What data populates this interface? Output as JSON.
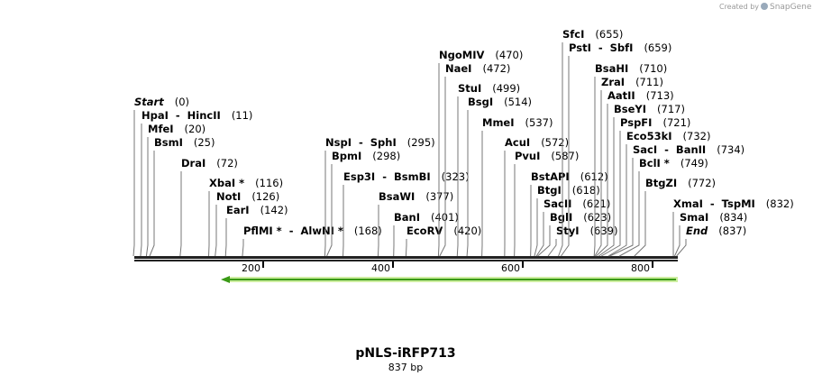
{
  "watermark": "Created by",
  "brand": "SnapGene",
  "map": {
    "title": "pNLS-iRFP713",
    "size": "837 bp",
    "ruler_ticks": [
      200,
      400,
      600,
      800
    ],
    "enzymes": [
      {
        "name": "Start",
        "position": {
          "value": 0,
          "label": "(0)"
        }
      },
      {
        "name": "HpaI  -  HincII",
        "position": {
          "value": 11,
          "label": "(11)"
        }
      },
      {
        "name": "MfeI",
        "position": {
          "value": 20,
          "label": "(20)"
        }
      },
      {
        "name": "BsmI",
        "position": {
          "value": 25,
          "label": "(25)"
        }
      },
      {
        "name": "DraI",
        "position": {
          "value": 72,
          "label": "(72)"
        }
      },
      {
        "name": "XbaI *",
        "position": {
          "value": 116,
          "label": "(116)"
        }
      },
      {
        "name": "NotI",
        "position": {
          "value": 126,
          "label": "(126)"
        }
      },
      {
        "name": "EarI",
        "position": {
          "value": 142,
          "label": "(142)"
        }
      },
      {
        "name": "PflMI *  -  AlwNI *",
        "position": {
          "value": 168,
          "label": "(168)"
        }
      },
      {
        "name": "NspI  -  SphI",
        "position": {
          "value": 295,
          "label": "(295)"
        }
      },
      {
        "name": "BpmI",
        "position": {
          "value": 298,
          "label": "(298)"
        }
      },
      {
        "name": "Esp3I  -  BsmBI",
        "position": {
          "value": 323,
          "label": "(323)"
        }
      },
      {
        "name": "BsaWI",
        "position": {
          "value": 377,
          "label": "(377)"
        }
      },
      {
        "name": "BanI",
        "position": {
          "value": 401,
          "label": "(401)"
        }
      },
      {
        "name": "EcoRV",
        "position": {
          "value": 420,
          "label": "(420)"
        }
      },
      {
        "name": "NgoMIV",
        "position": {
          "value": 470,
          "label": "(470)"
        }
      },
      {
        "name": "NaeI",
        "position": {
          "value": 472,
          "label": "(472)"
        }
      },
      {
        "name": "StuI",
        "position": {
          "value": 499,
          "label": "(499)"
        }
      },
      {
        "name": "BsgI",
        "position": {
          "value": 514,
          "label": "(514)"
        }
      },
      {
        "name": "MmeI",
        "position": {
          "value": 537,
          "label": "(537)"
        }
      },
      {
        "name": "AcuI",
        "position": {
          "value": 572,
          "label": "(572)"
        }
      },
      {
        "name": "PvuI",
        "position": {
          "value": 587,
          "label": "(587)"
        }
      },
      {
        "name": "BstAPI",
        "position": {
          "value": 612,
          "label": "(612)"
        }
      },
      {
        "name": "BtgI",
        "position": {
          "value": 618,
          "label": "(618)"
        }
      },
      {
        "name": "SacII",
        "position": {
          "value": 621,
          "label": "(621)"
        }
      },
      {
        "name": "BglI",
        "position": {
          "value": 623,
          "label": "(623)"
        }
      },
      {
        "name": "StyI",
        "position": {
          "value": 639,
          "label": "(639)"
        }
      },
      {
        "name": "SfcI",
        "position": {
          "value": 655,
          "label": "(655)"
        }
      },
      {
        "name": "PstI  -  SbfI",
        "position": {
          "value": 659,
          "label": "(659)"
        }
      },
      {
        "name": "BsaHI",
        "position": {
          "value": 710,
          "label": "(710)"
        }
      },
      {
        "name": "ZraI",
        "position": {
          "value": 711,
          "label": "(711)"
        }
      },
      {
        "name": "AatII",
        "position": {
          "value": 713,
          "label": "(713)"
        }
      },
      {
        "name": "BseYI",
        "position": {
          "value": 717,
          "label": "(717)"
        }
      },
      {
        "name": "PspFI",
        "position": {
          "value": 721,
          "label": "(721)"
        }
      },
      {
        "name": "Eco53kI",
        "position": {
          "value": 732,
          "label": "(732)"
        }
      },
      {
        "name": "SacI  -  BanII",
        "position": {
          "value": 734,
          "label": "(734)"
        }
      },
      {
        "name": "BclI *",
        "position": {
          "value": 749,
          "label": "(749)"
        }
      },
      {
        "name": "BtgZI",
        "position": {
          "value": 772,
          "label": "(772)"
        }
      },
      {
        "name": "XmaI  -  TspMI",
        "position": {
          "value": 832,
          "label": "(832)"
        }
      },
      {
        "name": "SmaI",
        "position": {
          "value": 834,
          "label": "(834)"
        }
      },
      {
        "name": "End",
        "position": {
          "value": 837,
          "label": "(837)"
        }
      }
    ]
  }
}
